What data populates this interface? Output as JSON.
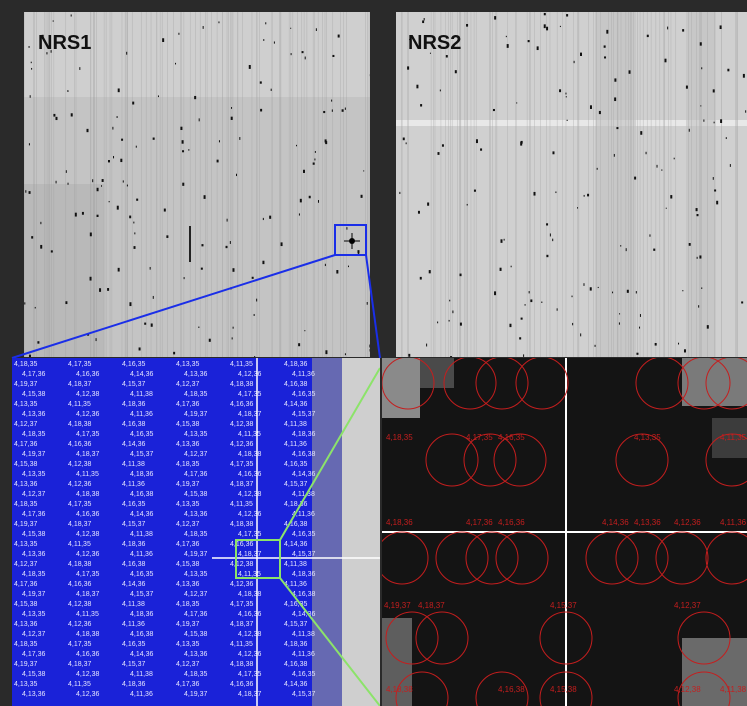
{
  "panels": {
    "nrs1": {
      "label": "NRS1"
    },
    "nrs2": {
      "label": "NRS2"
    }
  },
  "zoom_overlay": {
    "labels": [
      "4,18,35",
      "4,17,35",
      "4,16,35",
      "4,13,35",
      "4,11,35",
      "4,18,36",
      "4,17,36",
      "4,16,36",
      "4,14,36",
      "4,13,36",
      "4,12,36",
      "4,11,36",
      "4,19,37",
      "4,18,37",
      "4,15,37",
      "4,12,37",
      "4,18,38",
      "4,16,38",
      "4,15,38",
      "4,12,38",
      "4,11,38"
    ]
  },
  "colors": {
    "highlight_box": "#1a2ee8",
    "zoom_box": "#8ce36a",
    "circle": "#c41e1e",
    "label": "#c41e1e"
  }
}
